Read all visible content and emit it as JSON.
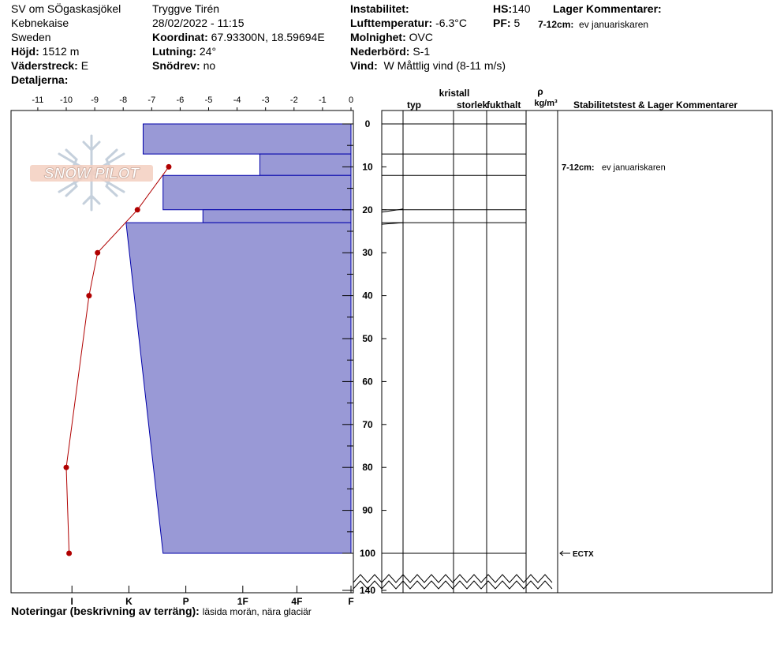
{
  "header": {
    "location": "SV om SÖgaskasjökel",
    "region": "Kebnekaise",
    "country": "Sweden",
    "elevation_label": "Höjd:",
    "elevation_value": "1512 m",
    "aspect_label": "Väderstreck:",
    "aspect_value": "E",
    "details_label": "Detaljerna:",
    "observer": "Tryggve  Tirén",
    "datetime": "28/02/2022 - 11:15",
    "coord_label": "Koordinat:",
    "coord_value": "67.93300N, 18.59694E",
    "slope_label": "Lutning:",
    "slope_value": "24°",
    "drift_label": "Snödrev:",
    "drift_value": "no",
    "instability_label": "Instabilitet:",
    "airtemp_label": "Lufttemperatur:",
    "airtemp_value": "-6.3°C",
    "sky_label": "Molnighet:",
    "sky_value": "OVC",
    "precip_label": "Nederbörd:",
    "precip_value": "S-1",
    "wind_label": "Vind:",
    "wind_value": "W Måttlig vind (8-11 m/s)",
    "hs_label": "HS:",
    "hs_value": "140",
    "pf_label": "PF:",
    "pf_value": "5",
    "layer_comments_label": "Lager Kommentarer:",
    "comment_depth": "7-12cm:",
    "comment_text": "ev januariskaren"
  },
  "columns": {
    "typ": "typ",
    "kristall": "kristall",
    "storlek": "storlek",
    "fukthalt": "fukthalt",
    "rho": "ρ",
    "rho_unit": "kg/m³",
    "stability": "Stabilitetstest & Lager Kommentarer"
  },
  "logo_text": "SNOW PILOT",
  "notes_label": "Noteringar (beskrivning av terräng):",
  "notes_value": "läsida morän, nära glaciär",
  "annotations": {
    "layer_depth": "7-12cm:",
    "layer_text": "ev januariskaren",
    "test": "ECTX"
  },
  "colors": {
    "hardness_fill": "#9999d6",
    "hardness_stroke": "#0000aa",
    "temp_line": "#b00000"
  },
  "chart_data": {
    "type": "snow_profile",
    "temperature_axis": {
      "ticks": [
        -11,
        -10,
        -9,
        -8,
        -7,
        -6,
        -5,
        -4,
        -3,
        -2,
        -1,
        0
      ],
      "range": [
        -11.2,
        0
      ]
    },
    "depth_axis": {
      "ticks": [
        0,
        10,
        20,
        30,
        40,
        50,
        60,
        70,
        80,
        90,
        100,
        140
      ],
      "shown_range": [
        0,
        100
      ],
      "bottom": 140
    },
    "hardness_axis": {
      "labels": [
        "I",
        "K",
        "P",
        "1F",
        "4F",
        "F"
      ],
      "scale": [
        9.8,
        7.8,
        5.8,
        3.8,
        1.9,
        0
      ]
    },
    "hardness_layers": [
      {
        "top": 0,
        "bottom": 7,
        "h_top": -7.3,
        "h_bottom": -7.3
      },
      {
        "top": 7,
        "bottom": 12,
        "h_top": -3.2,
        "h_bottom": -3.2
      },
      {
        "top": 12,
        "bottom": 20,
        "h_top": -6.6,
        "h_bottom": -6.6
      },
      {
        "top": 20,
        "bottom": 23,
        "h_top": -5.2,
        "h_bottom": -5.2
      },
      {
        "top": 23,
        "bottom": 100,
        "h_top": -7.9,
        "h_bottom": -6.6
      }
    ],
    "temperature_profile": [
      {
        "depth": 10,
        "temp": -6.4
      },
      {
        "depth": 20,
        "temp": -7.5
      },
      {
        "depth": 30,
        "temp": -8.9
      },
      {
        "depth": 40,
        "temp": -9.2
      },
      {
        "depth": 80,
        "temp": -10.0
      },
      {
        "depth": 100,
        "temp": -9.9
      }
    ],
    "layer_boundaries": [
      0,
      7,
      12,
      20,
      23,
      100
    ],
    "comment_depth": 10,
    "test_depth": 100
  }
}
